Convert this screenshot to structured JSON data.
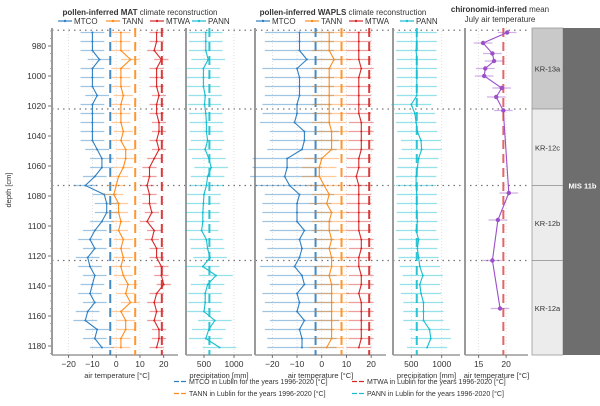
{
  "chart_data": [
    {
      "id": "mat_temp",
      "type": "line",
      "title_bold": "pollen-inferred MAT",
      "title_rest": " climate reconstruction",
      "xlabel": "air temperature [°C]",
      "ylabel": "depth [cm]",
      "xlim": [
        -27,
        26
      ],
      "xticks": [
        -20,
        -10,
        0,
        10,
        20
      ],
      "ylim": [
        968,
        1186
      ],
      "yticks": [
        980,
        1000,
        1020,
        1040,
        1060,
        1080,
        1100,
        1120,
        1140,
        1160,
        1180
      ],
      "legend": [
        "MTCO",
        "TANN",
        "MTWA"
      ],
      "reference_lines": {
        "MTCO": -2.5,
        "TANN": 8.0,
        "MTWA": 19.2
      },
      "depth": [
        971,
        977,
        983,
        989,
        995,
        1001,
        1007,
        1013,
        1019,
        1025,
        1031,
        1037,
        1043,
        1049,
        1055,
        1061,
        1067,
        1073,
        1079,
        1085,
        1091,
        1097,
        1103,
        1109,
        1115,
        1121,
        1127,
        1133,
        1139,
        1145,
        1151,
        1157,
        1163,
        1169,
        1175,
        1181
      ],
      "series": [
        {
          "name": "MTCO",
          "error": 5,
          "values": [
            -10,
            -10,
            -10,
            -7,
            -10,
            -10,
            -10,
            -8,
            -10,
            -10,
            -10,
            -10,
            -10,
            -8,
            -6,
            -6,
            -9,
            -13,
            -5,
            -4,
            -4,
            -6,
            -9,
            -11,
            -9,
            -12,
            -11,
            -9,
            -10,
            -11,
            -9,
            -12,
            -13,
            -8,
            -9,
            -6
          ]
        },
        {
          "name": "TANN",
          "error": 4,
          "values": [
            2,
            2,
            2,
            6,
            2,
            2,
            2,
            3,
            2,
            2,
            2,
            3,
            2,
            4,
            4,
            3,
            1,
            0,
            -1,
            1,
            1,
            2,
            1,
            3,
            2,
            3,
            2,
            3,
            5,
            4,
            6,
            2,
            4,
            4,
            2,
            2
          ]
        },
        {
          "name": "MTWA",
          "error": 3,
          "values": [
            17,
            17,
            16,
            19,
            17,
            17,
            17,
            18,
            17,
            17,
            18,
            18,
            17,
            18,
            16,
            14,
            14,
            13,
            14,
            14,
            15,
            13,
            16,
            15,
            17,
            17,
            19,
            19,
            20,
            17,
            16,
            17,
            16,
            18,
            18,
            17
          ]
        }
      ]
    },
    {
      "id": "mat_pann",
      "type": "line",
      "xlabel": "precipitation [mm]",
      "xlim": [
        200,
        1300
      ],
      "xticks": [
        500,
        1000
      ],
      "legend": [
        "PANN"
      ],
      "reference_lines": {
        "PANN": 590
      },
      "series": [
        {
          "name": "PANN",
          "error": 280,
          "values": [
            530,
            530,
            530,
            570,
            490,
            490,
            490,
            520,
            510,
            530,
            540,
            540,
            560,
            520,
            580,
            620,
            560,
            540,
            500,
            490,
            480,
            480,
            460,
            540,
            560,
            600,
            480,
            700,
            560,
            520,
            520,
            500,
            680,
            580,
            530,
            760
          ]
        }
      ]
    },
    {
      "id": "wapls_temp",
      "type": "line",
      "title_bold": "pollen-inferred WAPLS",
      "title_rest": " climate reconstruction",
      "xlabel": "air temperature [°C]",
      "xlim": [
        -27,
        26
      ],
      "xticks": [
        -20,
        -10,
        0,
        10,
        20
      ],
      "legend": [
        "MTCO",
        "TANN",
        "MTWA"
      ],
      "reference_lines": {
        "MTCO": -2.5,
        "TANN": 8.0,
        "MTWA": 19.2
      },
      "series": [
        {
          "name": "MTCO",
          "error": 14,
          "values": [
            -9,
            -9,
            -9,
            -6,
            -10,
            -9,
            -9,
            -9,
            -10,
            -10,
            -11,
            -7,
            -7,
            -8,
            -14,
            -14,
            -15,
            -13,
            -9,
            -10,
            -10,
            -10,
            -7,
            -9,
            -8,
            -9,
            -11,
            -8,
            -7,
            -10,
            -9,
            -10,
            -7,
            -9,
            -8,
            -8
          ]
        },
        {
          "name": "TANN",
          "error": 7,
          "values": [
            3,
            3,
            3,
            5,
            3,
            3,
            3,
            3,
            3,
            3,
            3,
            4,
            4,
            4,
            0,
            -1,
            -1,
            1,
            3,
            2,
            4,
            3,
            3,
            4,
            3,
            4,
            4,
            3,
            4,
            4,
            4,
            4,
            4,
            4,
            4,
            2
          ]
        },
        {
          "name": "MTWA",
          "error": 5,
          "values": [
            15,
            15,
            15,
            15,
            16,
            15,
            15,
            15,
            15,
            15,
            16,
            16,
            16,
            16,
            15,
            15,
            14,
            15,
            15,
            15,
            15,
            15,
            15,
            16,
            16,
            15,
            15,
            16,
            16,
            15,
            16,
            16,
            16,
            16,
            16,
            15
          ]
        }
      ]
    },
    {
      "id": "wapls_pann",
      "type": "line",
      "xlabel": "precipitation [mm]",
      "xlim": [
        200,
        1300
      ],
      "xticks": [
        500,
        1000
      ],
      "legend": [
        "PANN"
      ],
      "reference_lines": {
        "PANN": 590
      },
      "series": [
        {
          "name": "PANN",
          "error": 330,
          "values": [
            590,
            590,
            580,
            590,
            590,
            590,
            590,
            590,
            500,
            560,
            580,
            600,
            660,
            670,
            620,
            600,
            580,
            580,
            590,
            590,
            590,
            600,
            580,
            620,
            600,
            620,
            640,
            690,
            640,
            660,
            700,
            700,
            700,
            800,
            820,
            760
          ]
        }
      ]
    },
    {
      "id": "chironomid",
      "type": "line",
      "title_bold": "chironomid-inferred",
      "title_rest": " mean",
      "title_line2": "July air temperature",
      "xlabel": "air temperature [°C]",
      "xlim": [
        12.5,
        24
      ],
      "xticks": [
        15,
        20
      ],
      "reference_lines": {
        "July": 19.5
      },
      "depth": [
        971,
        978,
        985,
        990,
        995,
        1000,
        1008,
        1014,
        1023,
        1078,
        1096,
        1123,
        1155
      ],
      "series": [
        {
          "name": "July",
          "error": 1.7,
          "values": [
            20.2,
            15.8,
            17.5,
            17.8,
            16.2,
            16.0,
            19.2,
            18.2,
            19.5,
            20.5,
            18.5,
            17.5,
            18.9
          ]
        }
      ]
    }
  ],
  "zones": {
    "local": [
      {
        "label": "KR-13a",
        "from": 968,
        "to": 1022,
        "color": "#c9c9c9"
      },
      {
        "label": "KR-12c",
        "from": 1022,
        "to": 1073,
        "color": "#ececec"
      },
      {
        "label": "KR-12b",
        "from": 1073,
        "to": 1123,
        "color": "#ececec"
      },
      {
        "label": "KR-12a",
        "from": 1123,
        "to": 1186,
        "color": "#ececec"
      }
    ],
    "mis": {
      "label": "MIS 11b",
      "color": "#6e6e6e"
    },
    "boundaries": [
      1022,
      1073,
      1123
    ]
  },
  "colors": {
    "MTCO": "#2f7fc1",
    "TANN": "#ff8c1a",
    "MTWA": "#d62728",
    "PANN": "#17becf",
    "July": "#9b4fc8",
    "JulyRef": "#e15759"
  },
  "bottom_legend": [
    {
      "key": "MTCO",
      "label": "MTCO in Lublin for the years 1996-2020 [°C]"
    },
    {
      "key": "MTWA",
      "label": "MTWA in Lublin for the years 1996-2020 [°C]"
    },
    {
      "key": "TANN",
      "label": "TANN in Lublin for the years 1996-2020 [°C]"
    },
    {
      "key": "PANN",
      "label": "PANN in Lublin for the years 1996-2020 [°C]"
    }
  ]
}
